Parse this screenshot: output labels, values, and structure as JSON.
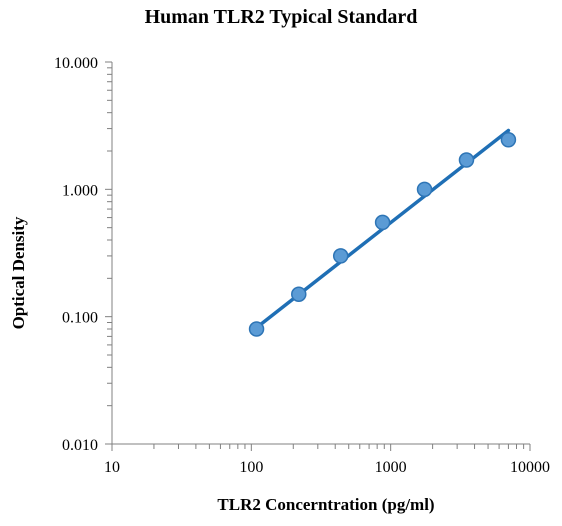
{
  "chart_data": {
    "type": "scatter",
    "title": "Human TLR2 Typical Standard",
    "xlabel": "TLR2 Concerntration (pg/ml)",
    "ylabel": "Optical Density",
    "x_scale": "log",
    "y_scale": "log",
    "xlim": [
      10,
      10000
    ],
    "ylim": [
      0.01,
      10
    ],
    "x_tick_labels": [
      "10",
      "100",
      "1000",
      "10000"
    ],
    "x_tick_values": [
      10,
      100,
      1000,
      10000
    ],
    "y_tick_labels": [
      "10.000",
      "1.000",
      "0.100",
      "0.010"
    ],
    "y_tick_values": [
      10,
      1,
      0.1,
      0.01
    ],
    "grid": false,
    "legend": "none",
    "series": [
      {
        "points": [
          {
            "x": 109,
            "y": 0.08
          },
          {
            "x": 219,
            "y": 0.15
          },
          {
            "x": 438,
            "y": 0.3
          },
          {
            "x": 875,
            "y": 0.55
          },
          {
            "x": 1750,
            "y": 1.0
          },
          {
            "x": 3500,
            "y": 1.7
          },
          {
            "x": 7000,
            "y": 2.45
          }
        ],
        "trendline": {
          "from": {
            "x": 109,
            "y": 0.082
          },
          "to": {
            "x": 7000,
            "y": 2.9
          }
        }
      }
    ],
    "colors": {
      "marker_fill": "#5b9bd5",
      "marker_stroke": "#2e75b6",
      "line": "#1f6fb5",
      "axis": "#808080"
    }
  }
}
